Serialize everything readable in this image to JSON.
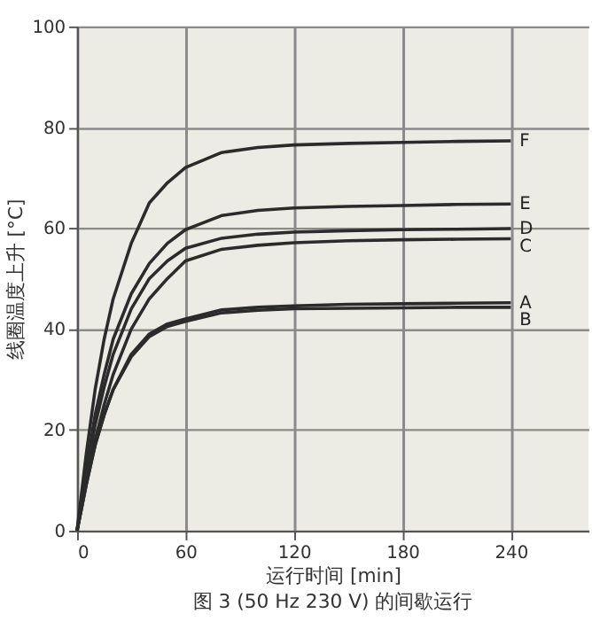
{
  "chart_data": {
    "type": "line",
    "xlabel": "运行时间 [min]",
    "ylabel": "线圈温度上升 [°C]",
    "annotations": [
      "图 3 (50 Hz 230 V) 的间歇运行"
    ],
    "x": [
      0,
      5,
      10,
      15,
      20,
      30,
      40,
      50,
      60,
      80,
      100,
      120,
      150,
      180,
      210,
      240
    ],
    "xlim": [
      0,
      283
    ],
    "xticks": [
      0,
      60,
      120,
      180,
      240
    ],
    "ylim": [
      0,
      100
    ],
    "yticks": [
      0,
      20,
      40,
      60,
      80,
      100
    ],
    "grid": true,
    "legend": false,
    "marker": "none",
    "line_style": "solid",
    "series": [
      {
        "name": "F",
        "color": "#2b2b2b",
        "values": [
          0,
          15,
          28,
          38,
          46,
          57,
          65,
          69,
          72,
          75,
          76,
          76.5,
          76.8,
          77,
          77.2,
          77.3
        ]
      },
      {
        "name": "E",
        "color": "#2b2b2b",
        "values": [
          0,
          12,
          23,
          31,
          38,
          47,
          53,
          57,
          59.7,
          62.5,
          63.5,
          64,
          64.3,
          64.5,
          64.7,
          64.8
        ]
      },
      {
        "name": "D",
        "color": "#2b2b2b",
        "values": [
          0,
          11,
          21,
          28.5,
          35,
          44,
          50,
          53.5,
          56,
          58,
          58.8,
          59.2,
          59.5,
          59.7,
          59.8,
          59.9
        ]
      },
      {
        "name": "C",
        "color": "#2b2b2b",
        "values": [
          0,
          9.5,
          18,
          25,
          31,
          40,
          46,
          50,
          53.5,
          55.8,
          56.6,
          57.1,
          57.5,
          57.7,
          57.8,
          57.9
        ]
      },
      {
        "name": "A",
        "color": "#2b2b2b",
        "values": [
          0,
          9,
          17,
          23,
          28,
          35,
          39,
          41,
          42,
          43.8,
          44.3,
          44.6,
          44.9,
          45,
          45.1,
          45.2
        ]
      },
      {
        "name": "B",
        "color": "#2b2b2b",
        "values": [
          0,
          9,
          17,
          23,
          28,
          34.5,
          38.5,
          40.5,
          41.5,
          43.2,
          43.7,
          44,
          44.1,
          44.2,
          44.3,
          44.3
        ]
      }
    ]
  }
}
